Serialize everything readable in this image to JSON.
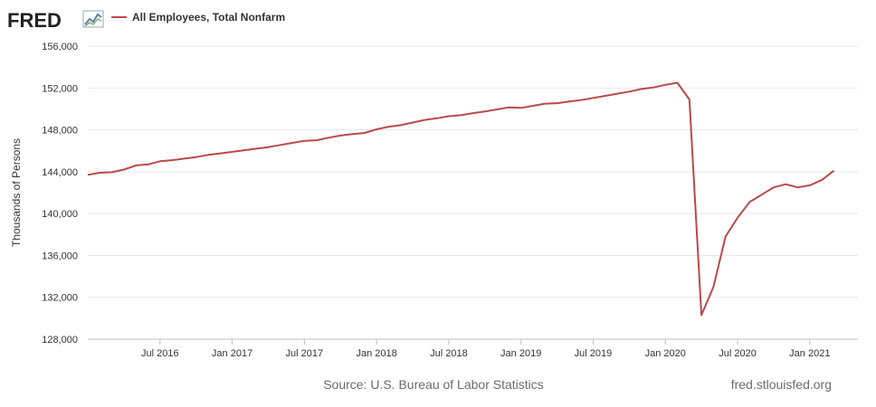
{
  "header": {
    "logo_text": "FRED",
    "logo_icon": "fred-graph-icon",
    "legend_label": "All Employees, Total Nonfarm"
  },
  "footer": {
    "source": "Source: U.S. Bureau of Labor Statistics",
    "site": "fred.stlouisfed.org"
  },
  "colors": {
    "series": "#b94a48",
    "grid": "#e6e6e6",
    "axis": "#c0c0c0",
    "text": "#333333"
  },
  "chart_data": {
    "type": "line",
    "title": "",
    "xlabel": "",
    "ylabel": "Thousands of Persons",
    "ylim": [
      128000,
      156000
    ],
    "yticks": [
      128000,
      132000,
      136000,
      140000,
      144000,
      148000,
      152000,
      156000
    ],
    "ytick_labels": [
      "128,000",
      "132,000",
      "136,000",
      "140,000",
      "144,000",
      "148,000",
      "152,000",
      "156,000"
    ],
    "xlim": [
      "2016-01",
      "2021-05"
    ],
    "xticks": [
      "2016-07",
      "2017-01",
      "2017-07",
      "2018-01",
      "2018-07",
      "2019-01",
      "2019-07",
      "2020-01",
      "2020-07",
      "2021-01"
    ],
    "xtick_labels": [
      "Jul 2016",
      "Jan 2017",
      "Jul 2017",
      "Jan 2018",
      "Jul 2018",
      "Jan 2019",
      "Jul 2019",
      "Jan 2020",
      "Jul 2020",
      "Jan 2021"
    ],
    "grid": true,
    "legend": "top-left",
    "series": [
      {
        "name": "All Employees, Total Nonfarm",
        "x": [
          "2016-01",
          "2016-02",
          "2016-03",
          "2016-04",
          "2016-05",
          "2016-06",
          "2016-07",
          "2016-08",
          "2016-09",
          "2016-10",
          "2016-11",
          "2016-12",
          "2017-01",
          "2017-02",
          "2017-03",
          "2017-04",
          "2017-05",
          "2017-06",
          "2017-07",
          "2017-08",
          "2017-09",
          "2017-10",
          "2017-11",
          "2017-12",
          "2018-01",
          "2018-02",
          "2018-03",
          "2018-04",
          "2018-05",
          "2018-06",
          "2018-07",
          "2018-08",
          "2018-09",
          "2018-10",
          "2018-11",
          "2018-12",
          "2019-01",
          "2019-02",
          "2019-03",
          "2019-04",
          "2019-05",
          "2019-06",
          "2019-07",
          "2019-08",
          "2019-09",
          "2019-10",
          "2019-11",
          "2019-12",
          "2020-01",
          "2020-02",
          "2020-03",
          "2020-04",
          "2020-05",
          "2020-06",
          "2020-07",
          "2020-08",
          "2020-09",
          "2020-10",
          "2020-11",
          "2020-12",
          "2021-01",
          "2021-02",
          "2021-03"
        ],
        "values": [
          143700,
          143900,
          143950,
          144200,
          144600,
          144700,
          145000,
          145100,
          145250,
          145400,
          145600,
          145750,
          145900,
          146050,
          146200,
          146350,
          146550,
          146750,
          146950,
          147000,
          147250,
          147450,
          147600,
          147700,
          148050,
          148300,
          148450,
          148700,
          148950,
          149100,
          149300,
          149400,
          149600,
          149750,
          149950,
          150150,
          150100,
          150300,
          150500,
          150550,
          150700,
          150850,
          151050,
          151250,
          151450,
          151650,
          151900,
          152050,
          152300,
          152500,
          150900,
          130300,
          133000,
          137800,
          139600,
          141100,
          141800,
          142500,
          142800,
          142500,
          142700,
          143200,
          144100
        ]
      }
    ]
  }
}
